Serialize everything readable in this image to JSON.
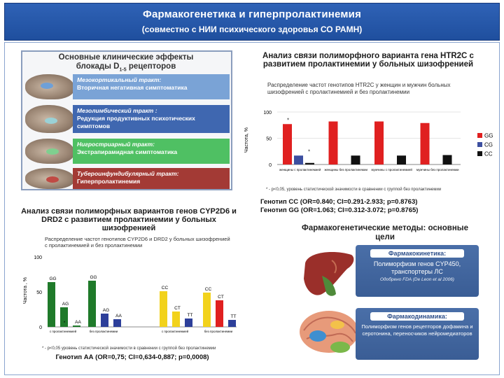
{
  "header": {
    "title": "Фармакогенетика и гиперпролактинемия",
    "subtitle": "(совместно с НИИ психического здоровья СО РАМН)"
  },
  "tracts": {
    "title_line1": "Основные клинические эффекты",
    "title_line2": "блокады D",
    "title_sub": "1-5",
    "title_line2_end": " рецепторов",
    "rows": [
      {
        "name": "Мезокортикальный тракт:",
        "effect": "Вторичная негативная симптоматика",
        "color": "#7aa3d6"
      },
      {
        "name": "Мезолимбический тракт :",
        "effect": "Редукция продуктивных психотических симптомов",
        "color": "#3f67b0"
      },
      {
        "name": "Нигростриарный тракт:",
        "effect": "Экстрапирамидная симптоматика",
        "color": "#4fc063"
      },
      {
        "name": "Тубероинфундибулярный тракт:",
        "effect": "Гиперпролактинемия",
        "color": "#a33a35"
      }
    ]
  },
  "htr": {
    "title": "Анализ связи полиморфного варианта гена HTR2C с развитием пролактинемии у больных шизофренией",
    "subtitle": "Распределение частот генотипов HTR2C у женщин и мужчин больных шизофренией с пролактинемией и без пролактинемии",
    "footnote": "* - p<0,05, уровень статистической значимости в сравнении с группой без пролактинемии",
    "genotype_cc": "Генотип СС (OR=0.840; CI=0.291-2.933; p=0.8763)",
    "genotype_gg": "Генотип GG (OR=1.063; CI=0.312-3.072; p=0.8765)"
  },
  "cyp": {
    "title": "Анализ связи полиморфных вариантов генов CYP2D6 и DRD2 с развитием пролактинемии у больных шизофренией",
    "subtitle": "Распределение частот генотипов CYP2D6 и DRD2 у больных шизофренией с пролактинемией и без пролактинемии",
    "footnote": "* - p<0,05 уровень статистической значимости в сравнении с группой без пролактинемии",
    "genotype_aa": "Генотип АА (OR=0,75; CI=0,634-0,887; p=0,0008)"
  },
  "methods": {
    "title": "Фармакогенетические методы: основные цели",
    "pk_head": "Фармакокинетика:",
    "pk_body": "Полиморфизм генов CYP450, транспортеры ЛС",
    "pk_note": "Одобрено FDA (De Leon et al 2006)",
    "pd_head": "Фармакодинамика:",
    "pd_body": "Полиморфизм генов рецепторов дофамина и серотонина, переносчиков нейромедиаторов"
  },
  "chart_data": [
    {
      "type": "bar",
      "subtitle": "Распределение частот генотипов HTR2C у женщин и мужчин больных шизофренией с пролактинемией и без пролактинемии",
      "categories": [
        "женщины с пролактинемией",
        "женщины без пролактинемии",
        "мужчины с пролактинемией",
        "мужчины без пролактинемии"
      ],
      "ylabel": "Частота, %",
      "ylim": [
        0,
        100
      ],
      "yticks": [
        0,
        50,
        100
      ],
      "legend": "right",
      "series": [
        {
          "name": "GG",
          "color": "#e02020",
          "values": [
            77,
            82,
            82,
            79
          ]
        },
        {
          "name": "CG",
          "color": "#3c4fa0",
          "values": [
            17,
            0,
            0,
            0
          ]
        },
        {
          "name": "CC",
          "color": "#111111",
          "values": [
            3,
            17,
            17,
            18
          ]
        }
      ],
      "annotations": [
        "*",
        "*"
      ]
    },
    {
      "type": "bar",
      "subtitle": "Распределение частот генотипов CYP2D6 и DRD2 у больных шизофренией с пролактинемией и без пролактинемии",
      "categories": [
        "с пролактинемией",
        "без пролактинемии",
        "с пролактинемией",
        "без пролактинемии"
      ],
      "ylabel": "Частота , %",
      "ylim": [
        0,
        100
      ],
      "yticks": [
        0,
        50,
        100
      ],
      "bars": [
        {
          "label": "GG",
          "value": 64,
          "color": "#1f7a2a",
          "group": 0
        },
        {
          "label": "AG",
          "value": 28,
          "color": "#1f7a2a",
          "group": 0
        },
        {
          "label": "AA",
          "value": 2,
          "color": "#1f7a2a",
          "group": 0
        },
        {
          "label": "GG",
          "value": 66,
          "color": "#1f7a2a",
          "group": 1
        },
        {
          "label": "AG",
          "value": 19,
          "color": "#2d3f9a",
          "group": 1
        },
        {
          "label": "AA",
          "value": 11,
          "color": "#2d3f9a",
          "group": 1
        },
        {
          "label": "CC",
          "value": 51,
          "color": "#f2d21c",
          "group": 2
        },
        {
          "label": "CT",
          "value": 22,
          "color": "#f2d21c",
          "group": 2
        },
        {
          "label": "TT",
          "value": 12,
          "color": "#2d3f9a",
          "group": 2
        },
        {
          "label": "CC",
          "value": 49,
          "color": "#f2d21c",
          "group": 3
        },
        {
          "label": "CT",
          "value": 38,
          "color": "#e02020",
          "group": 3
        },
        {
          "label": "TT",
          "value": 10,
          "color": "#2d3f9a",
          "group": 3
        }
      ],
      "annotations": [
        "*"
      ]
    }
  ]
}
